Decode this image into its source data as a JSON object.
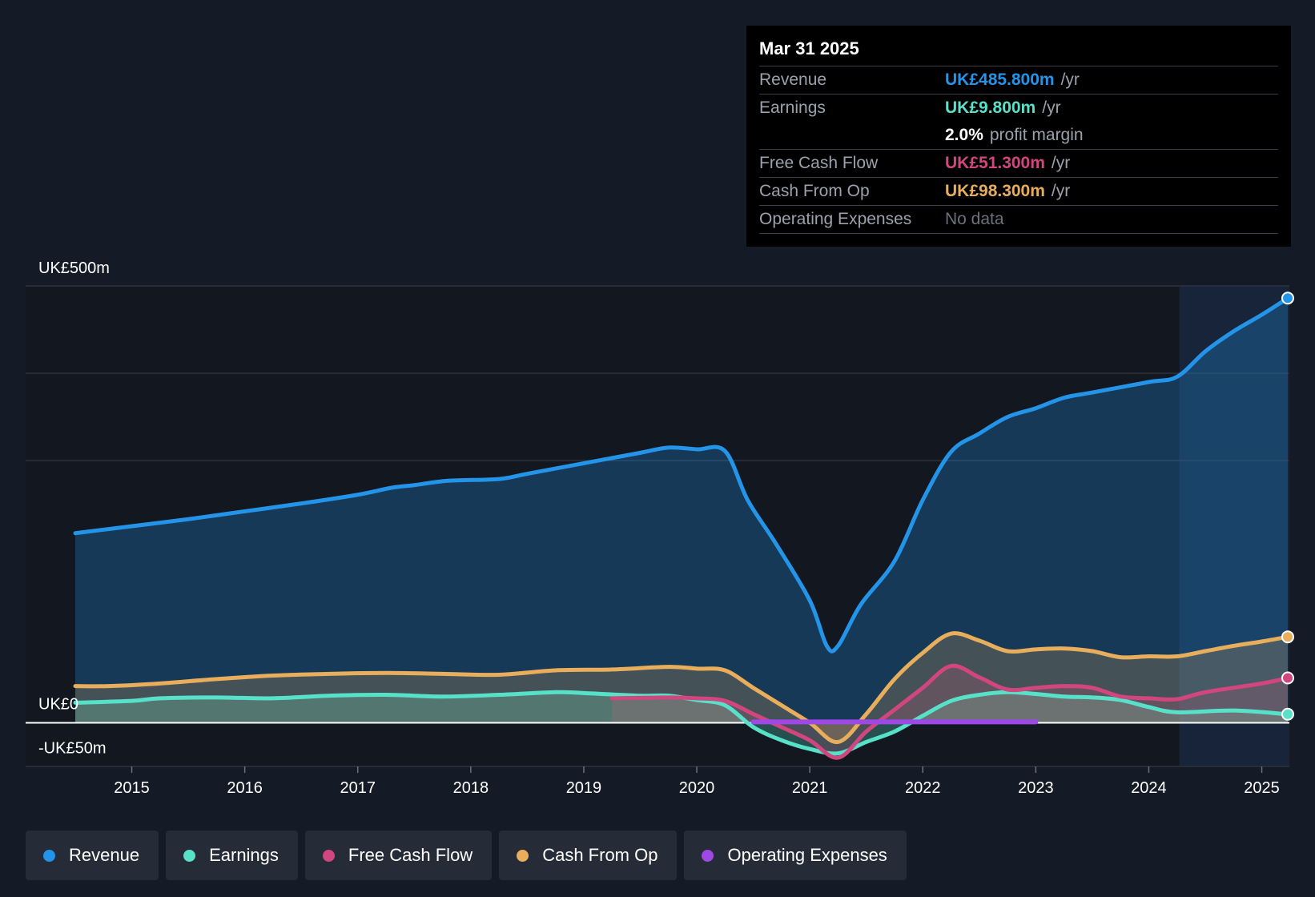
{
  "chart_data": {
    "type": "area",
    "y_axis": {
      "top_label": "UK£500m",
      "zero_label": "UK£0",
      "bottom_label": "-UK£50m",
      "ylim": [
        -50,
        500
      ]
    },
    "x_ticks": [
      "2015",
      "2016",
      "2017",
      "2018",
      "2019",
      "2020",
      "2021",
      "2022",
      "2023",
      "2024",
      "2025"
    ],
    "xlim": [
      2014.05,
      2025.23
    ],
    "highlight_start": 2024.27,
    "series": [
      {
        "name": "Revenue",
        "color": "#2394e8",
        "points": [
          [
            2014.5,
            217
          ],
          [
            2015.0,
            225
          ],
          [
            2015.5,
            233
          ],
          [
            2016.0,
            242
          ],
          [
            2016.5,
            251
          ],
          [
            2017.0,
            261
          ],
          [
            2017.3,
            269
          ],
          [
            2017.5,
            272
          ],
          [
            2017.8,
            277
          ],
          [
            2018.25,
            279
          ],
          [
            2018.5,
            285
          ],
          [
            2019.0,
            297
          ],
          [
            2019.5,
            309
          ],
          [
            2019.75,
            315
          ],
          [
            2020.0,
            313
          ],
          [
            2020.25,
            311
          ],
          [
            2020.45,
            255
          ],
          [
            2020.7,
            205
          ],
          [
            2021.0,
            140
          ],
          [
            2021.15,
            88
          ],
          [
            2021.25,
            88
          ],
          [
            2021.45,
            135
          ],
          [
            2021.75,
            185
          ],
          [
            2022.0,
            255
          ],
          [
            2022.25,
            310
          ],
          [
            2022.5,
            331
          ],
          [
            2022.75,
            350
          ],
          [
            2023.0,
            360
          ],
          [
            2023.25,
            372
          ],
          [
            2023.5,
            378
          ],
          [
            2024.0,
            390
          ],
          [
            2024.25,
            396
          ],
          [
            2024.5,
            425
          ],
          [
            2024.75,
            448
          ],
          [
            2025.0,
            467
          ],
          [
            2025.23,
            486
          ]
        ]
      },
      {
        "name": "Earnings",
        "color": "#58e1c9",
        "points": [
          [
            2014.5,
            23
          ],
          [
            2015.0,
            25
          ],
          [
            2015.25,
            28
          ],
          [
            2015.75,
            29
          ],
          [
            2016.25,
            28
          ],
          [
            2016.75,
            31
          ],
          [
            2017.25,
            32
          ],
          [
            2017.75,
            30
          ],
          [
            2018.25,
            32
          ],
          [
            2018.75,
            35
          ],
          [
            2019.0,
            34
          ],
          [
            2019.5,
            31
          ],
          [
            2019.75,
            31
          ],
          [
            2020.0,
            26
          ],
          [
            2020.25,
            20
          ],
          [
            2020.5,
            -5
          ],
          [
            2020.75,
            -20
          ],
          [
            2021.0,
            -30
          ],
          [
            2021.25,
            -35
          ],
          [
            2021.5,
            -22
          ],
          [
            2021.75,
            -10
          ],
          [
            2022.0,
            8
          ],
          [
            2022.25,
            25
          ],
          [
            2022.5,
            32
          ],
          [
            2022.75,
            35
          ],
          [
            2023.0,
            33
          ],
          [
            2023.25,
            30
          ],
          [
            2023.5,
            29
          ],
          [
            2023.75,
            26
          ],
          [
            2024.0,
            18
          ],
          [
            2024.25,
            12
          ],
          [
            2024.75,
            14
          ],
          [
            2025.23,
            9.8
          ]
        ]
      },
      {
        "name": "Free Cash Flow",
        "color": "#d2467f",
        "points": [
          [
            2019.25,
            28
          ],
          [
            2019.75,
            29
          ],
          [
            2020.0,
            28
          ],
          [
            2020.25,
            25
          ],
          [
            2020.5,
            10
          ],
          [
            2020.75,
            -5
          ],
          [
            2021.0,
            -20
          ],
          [
            2021.25,
            -40
          ],
          [
            2021.5,
            -10
          ],
          [
            2021.75,
            15
          ],
          [
            2022.0,
            40
          ],
          [
            2022.25,
            65
          ],
          [
            2022.5,
            52
          ],
          [
            2022.75,
            38
          ],
          [
            2023.0,
            40
          ],
          [
            2023.25,
            42
          ],
          [
            2023.5,
            40
          ],
          [
            2023.75,
            30
          ],
          [
            2024.0,
            28
          ],
          [
            2024.25,
            27
          ],
          [
            2024.5,
            35
          ],
          [
            2025.0,
            45
          ],
          [
            2025.23,
            51.3
          ]
        ]
      },
      {
        "name": "Cash From Op",
        "color": "#e8ae5c",
        "points": [
          [
            2014.5,
            42
          ],
          [
            2014.8,
            42
          ],
          [
            2015.25,
            45
          ],
          [
            2015.75,
            50
          ],
          [
            2016.25,
            54
          ],
          [
            2016.75,
            56
          ],
          [
            2017.25,
            57
          ],
          [
            2017.75,
            56
          ],
          [
            2018.25,
            55
          ],
          [
            2018.75,
            60
          ],
          [
            2019.25,
            61
          ],
          [
            2019.75,
            64
          ],
          [
            2020.0,
            62
          ],
          [
            2020.25,
            60
          ],
          [
            2020.5,
            40
          ],
          [
            2020.75,
            20
          ],
          [
            2021.0,
            0
          ],
          [
            2021.25,
            -22
          ],
          [
            2021.5,
            10
          ],
          [
            2021.75,
            50
          ],
          [
            2022.0,
            80
          ],
          [
            2022.25,
            102
          ],
          [
            2022.5,
            94
          ],
          [
            2022.75,
            82
          ],
          [
            2023.0,
            84
          ],
          [
            2023.25,
            85
          ],
          [
            2023.5,
            82
          ],
          [
            2023.75,
            75
          ],
          [
            2024.0,
            76
          ],
          [
            2024.25,
            76
          ],
          [
            2024.5,
            82
          ],
          [
            2024.75,
            88
          ],
          [
            2025.0,
            93
          ],
          [
            2025.23,
            98.3
          ]
        ]
      },
      {
        "name": "Operating Expenses",
        "color": "#9e49e6",
        "points": [
          [
            2020.5,
            1
          ],
          [
            2023.0,
            1
          ]
        ]
      }
    ],
    "end_markers": [
      "Revenue",
      "Cash From Op",
      "Free Cash Flow",
      "Earnings"
    ]
  },
  "tooltip": {
    "date": "Mar 31 2025",
    "rows": [
      {
        "label": "Revenue",
        "value": "UK£485.800m",
        "unit": "/yr",
        "color": "#2394e8"
      },
      {
        "label": "Earnings",
        "value": "UK£9.800m",
        "unit": "/yr",
        "color": "#58e1c9"
      },
      {
        "label": "",
        "value": "2.0%",
        "unit": "profit margin",
        "color": "#ffffff"
      },
      {
        "label": "Free Cash Flow",
        "value": "UK£51.300m",
        "unit": "/yr",
        "color": "#d2467f"
      },
      {
        "label": "Cash From Op",
        "value": "UK£98.300m",
        "unit": "/yr",
        "color": "#e8ae5c"
      },
      {
        "label": "Operating Expenses",
        "value": "",
        "unit": "",
        "nodata": "No data",
        "color": "#6b717b"
      }
    ]
  },
  "legend": [
    {
      "label": "Revenue",
      "color": "#2394e8"
    },
    {
      "label": "Earnings",
      "color": "#58e1c9"
    },
    {
      "label": "Free Cash Flow",
      "color": "#d2467f"
    },
    {
      "label": "Cash From Op",
      "color": "#e8ae5c"
    },
    {
      "label": "Operating Expenses",
      "color": "#9e49e6"
    }
  ]
}
